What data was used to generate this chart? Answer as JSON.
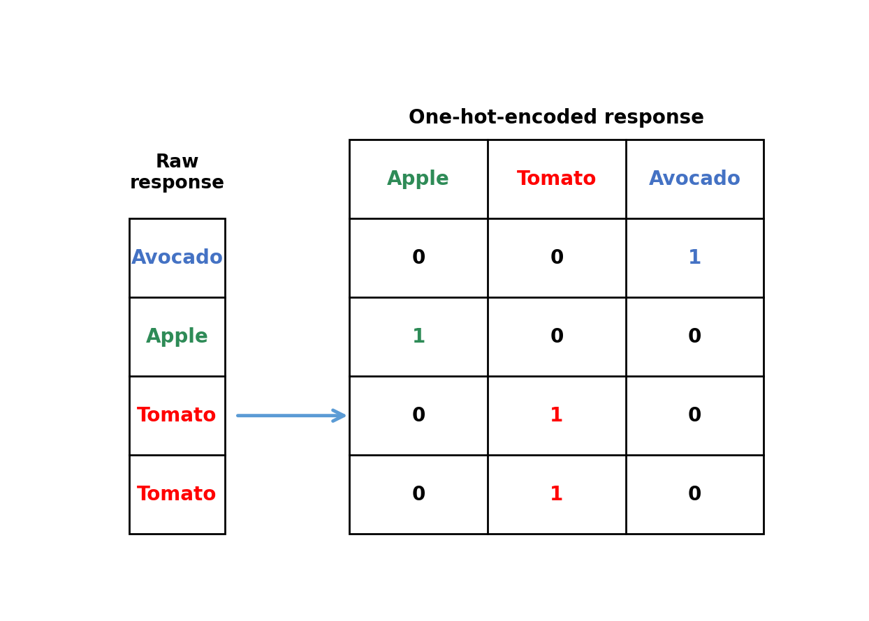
{
  "title": "One-hot-encoded response",
  "title_fontsize": 20,
  "title_fontweight": "bold",
  "raw_label": "Raw\nresponse",
  "raw_label_fontsize": 19,
  "raw_label_fontweight": "bold",
  "raw_rows": [
    "Avocado",
    "Apple",
    "Tomato",
    "Tomato"
  ],
  "raw_row_colors": [
    "#4472C4",
    "#2E8B57",
    "#FF0000",
    "#FF0000"
  ],
  "col_headers": [
    "Apple",
    "Tomato",
    "Avocado"
  ],
  "col_header_colors": [
    "#2E8B57",
    "#FF0000",
    "#4472C4"
  ],
  "table_data": [
    [
      "0",
      "0",
      "1"
    ],
    [
      "1",
      "0",
      "0"
    ],
    [
      "0",
      "1",
      "0"
    ],
    [
      "0",
      "1",
      "0"
    ]
  ],
  "cell_colors": [
    [
      "black",
      "black",
      "#4472C4"
    ],
    [
      "#2E8B57",
      "black",
      "black"
    ],
    [
      "black",
      "#FF0000",
      "black"
    ],
    [
      "black",
      "#FF0000",
      "black"
    ]
  ],
  "arrow_color": "#5B9BD5",
  "background_color": "white",
  "cell_fontsize": 20,
  "header_fontsize": 20,
  "row_label_fontsize": 20,
  "line_width": 2.0
}
